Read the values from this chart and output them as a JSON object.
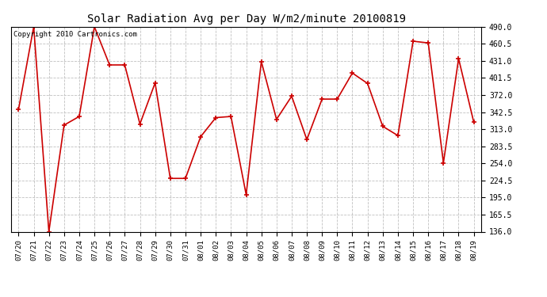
{
  "title": "Solar Radiation Avg per Day W/m2/minute 20100819",
  "copyright": "Copyright 2010 Cartronics.com",
  "tick_labels": [
    "07/20",
    "07/21",
    "07/22",
    "07/23",
    "07/24",
    "07/25",
    "07/26",
    "07/27",
    "07/28",
    "07/29",
    "07/30",
    "07/31",
    "08/01",
    "08/02",
    "08/03",
    "08/04",
    "08/05",
    "08/06",
    "08/07",
    "08/08",
    "08/09",
    "08/10",
    "08/11",
    "08/12",
    "08/13",
    "08/14",
    "08/15",
    "08/16",
    "08/17",
    "08/18",
    "08/19"
  ],
  "values": [
    347,
    490,
    136,
    320,
    335,
    490,
    424,
    424,
    322,
    393,
    228,
    228,
    300,
    333,
    335,
    200,
    430,
    330,
    370,
    295,
    365,
    365,
    410,
    392,
    318,
    302,
    465,
    462,
    255,
    435,
    325
  ],
  "line_color": "#cc0000",
  "marker_color": "#cc0000",
  "bg_color": "#ffffff",
  "grid_color": "#c0c0c0",
  "ylim_min": 136.0,
  "ylim_max": 490.0,
  "yticks": [
    136.0,
    165.5,
    195.0,
    224.5,
    254.0,
    283.5,
    313.0,
    342.5,
    372.0,
    401.5,
    431.0,
    460.5,
    490.0
  ],
  "title_fontsize": 10,
  "tick_fontsize": 6.5,
  "ytick_fontsize": 7,
  "copyright_fontsize": 6.5
}
